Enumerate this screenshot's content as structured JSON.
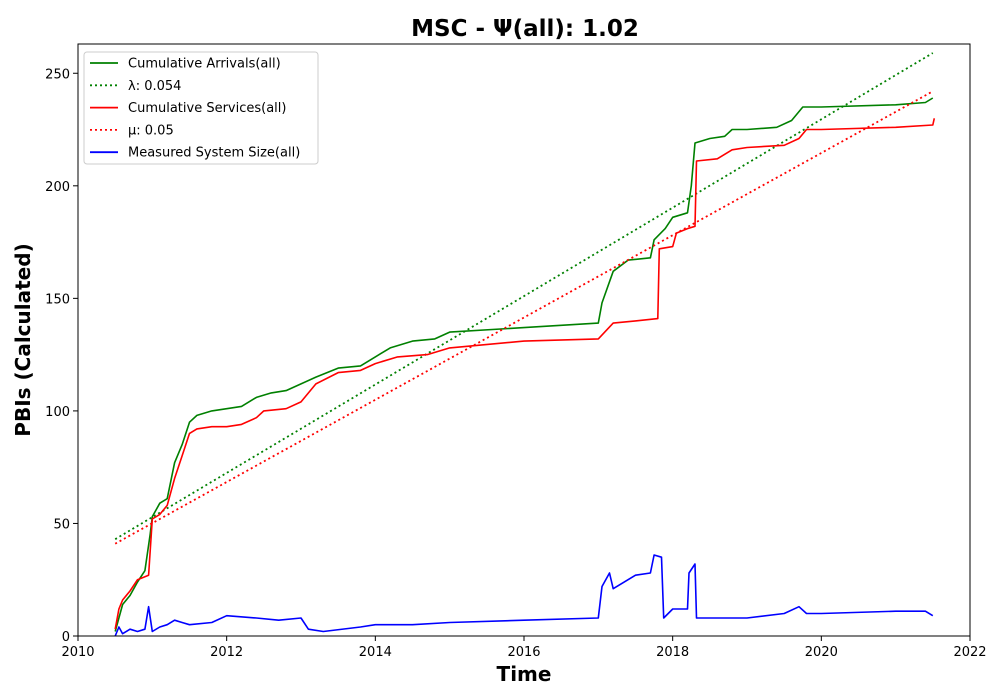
{
  "chart_data": {
    "type": "line",
    "title": "MSC -  Ψ(all): 1.02",
    "xlabel": "Time",
    "ylabel": "PBIs (Calculated)",
    "xlim": [
      2010.0,
      2022.0
    ],
    "ylim": [
      0,
      263
    ],
    "x_ticks": [
      2010,
      2012,
      2014,
      2016,
      2018,
      2020,
      2022
    ],
    "y_ticks": [
      0,
      50,
      100,
      150,
      200,
      250
    ],
    "grid": false,
    "legend_position": "upper-left",
    "series": [
      {
        "name": "Cumulative Arrivals(all)",
        "style": "solid",
        "color": "#008000",
        "points": [
          [
            2010.5,
            2
          ],
          [
            2010.55,
            8
          ],
          [
            2010.6,
            14
          ],
          [
            2010.7,
            18
          ],
          [
            2010.8,
            24
          ],
          [
            2010.9,
            29
          ],
          [
            2010.97,
            45
          ],
          [
            2011.0,
            53
          ],
          [
            2011.1,
            59
          ],
          [
            2011.2,
            61
          ],
          [
            2011.3,
            77
          ],
          [
            2011.4,
            85
          ],
          [
            2011.5,
            95
          ],
          [
            2011.6,
            98
          ],
          [
            2011.8,
            100
          ],
          [
            2012.0,
            101
          ],
          [
            2012.2,
            102
          ],
          [
            2012.4,
            106
          ],
          [
            2012.6,
            108
          ],
          [
            2012.8,
            109
          ],
          [
            2013.0,
            112
          ],
          [
            2013.2,
            115
          ],
          [
            2013.5,
            119
          ],
          [
            2013.8,
            120
          ],
          [
            2014.0,
            124
          ],
          [
            2014.2,
            128
          ],
          [
            2014.5,
            131
          ],
          [
            2014.8,
            132
          ],
          [
            2015.0,
            135
          ],
          [
            2016.0,
            137
          ],
          [
            2017.0,
            139
          ],
          [
            2017.05,
            148
          ],
          [
            2017.2,
            162
          ],
          [
            2017.4,
            167
          ],
          [
            2017.7,
            168
          ],
          [
            2017.75,
            176
          ],
          [
            2017.9,
            181
          ],
          [
            2018.0,
            186
          ],
          [
            2018.2,
            188
          ],
          [
            2018.25,
            200
          ],
          [
            2018.3,
            219
          ],
          [
            2018.5,
            221
          ],
          [
            2018.7,
            222
          ],
          [
            2018.8,
            225
          ],
          [
            2019.0,
            225
          ],
          [
            2019.4,
            226
          ],
          [
            2019.6,
            229
          ],
          [
            2019.75,
            235
          ],
          [
            2020.0,
            235
          ],
          [
            2021.0,
            236
          ],
          [
            2021.4,
            237
          ],
          [
            2021.5,
            239
          ]
        ]
      },
      {
        "name": "λ: 0.054",
        "style": "dotted",
        "color": "#008000",
        "points": [
          [
            2010.5,
            43
          ],
          [
            2021.5,
            259
          ]
        ]
      },
      {
        "name": "Cumulative Services(all)",
        "style": "solid",
        "color": "#ff0000",
        "points": [
          [
            2010.5,
            3
          ],
          [
            2010.55,
            12
          ],
          [
            2010.6,
            16
          ],
          [
            2010.7,
            20
          ],
          [
            2010.8,
            25
          ],
          [
            2010.95,
            27
          ],
          [
            2011.0,
            52
          ],
          [
            2011.1,
            54
          ],
          [
            2011.2,
            58
          ],
          [
            2011.3,
            70
          ],
          [
            2011.4,
            80
          ],
          [
            2011.5,
            90
          ],
          [
            2011.6,
            92
          ],
          [
            2011.8,
            93
          ],
          [
            2012.0,
            93
          ],
          [
            2012.2,
            94
          ],
          [
            2012.4,
            97
          ],
          [
            2012.5,
            100
          ],
          [
            2012.8,
            101
          ],
          [
            2013.0,
            104
          ],
          [
            2013.2,
            112
          ],
          [
            2013.5,
            117
          ],
          [
            2013.8,
            118
          ],
          [
            2014.0,
            121
          ],
          [
            2014.3,
            124
          ],
          [
            2014.7,
            125
          ],
          [
            2015.0,
            128
          ],
          [
            2016.0,
            131
          ],
          [
            2017.0,
            132
          ],
          [
            2017.2,
            139
          ],
          [
            2017.5,
            140
          ],
          [
            2017.8,
            141
          ],
          [
            2017.82,
            172
          ],
          [
            2018.0,
            173
          ],
          [
            2018.05,
            179
          ],
          [
            2018.2,
            181
          ],
          [
            2018.3,
            182
          ],
          [
            2018.32,
            211
          ],
          [
            2018.6,
            212
          ],
          [
            2018.8,
            216
          ],
          [
            2019.0,
            217
          ],
          [
            2019.5,
            218
          ],
          [
            2019.7,
            221
          ],
          [
            2019.8,
            225
          ],
          [
            2020.0,
            225
          ],
          [
            2021.0,
            226
          ],
          [
            2021.5,
            227
          ],
          [
            2021.52,
            230
          ]
        ]
      },
      {
        "name": "μ: 0.05",
        "style": "dotted",
        "color": "#ff0000",
        "points": [
          [
            2010.5,
            41
          ],
          [
            2021.5,
            242
          ]
        ]
      },
      {
        "name": "Measured System Size(all)",
        "style": "solid",
        "color": "#0000ff",
        "points": [
          [
            2010.5,
            0
          ],
          [
            2010.55,
            4
          ],
          [
            2010.6,
            1
          ],
          [
            2010.7,
            3
          ],
          [
            2010.8,
            2
          ],
          [
            2010.9,
            3
          ],
          [
            2010.95,
            13
          ],
          [
            2011.0,
            2
          ],
          [
            2011.1,
            4
          ],
          [
            2011.2,
            5
          ],
          [
            2011.3,
            7
          ],
          [
            2011.4,
            6
          ],
          [
            2011.5,
            5
          ],
          [
            2011.8,
            6
          ],
          [
            2012.0,
            9
          ],
          [
            2012.4,
            8
          ],
          [
            2012.7,
            7
          ],
          [
            2013.0,
            8
          ],
          [
            2013.1,
            3
          ],
          [
            2013.3,
            2
          ],
          [
            2013.8,
            4
          ],
          [
            2014.0,
            5
          ],
          [
            2014.5,
            5
          ],
          [
            2015.0,
            6
          ],
          [
            2016.0,
            7
          ],
          [
            2017.0,
            8
          ],
          [
            2017.05,
            22
          ],
          [
            2017.15,
            28
          ],
          [
            2017.2,
            21
          ],
          [
            2017.5,
            27
          ],
          [
            2017.7,
            28
          ],
          [
            2017.75,
            36
          ],
          [
            2017.85,
            35
          ],
          [
            2017.88,
            8
          ],
          [
            2018.0,
            12
          ],
          [
            2018.2,
            12
          ],
          [
            2018.22,
            28
          ],
          [
            2018.3,
            32
          ],
          [
            2018.32,
            8
          ],
          [
            2018.6,
            8
          ],
          [
            2019.0,
            8
          ],
          [
            2019.5,
            10
          ],
          [
            2019.7,
            13
          ],
          [
            2019.8,
            10
          ],
          [
            2020.0,
            10
          ],
          [
            2021.0,
            11
          ],
          [
            2021.4,
            11
          ],
          [
            2021.5,
            9
          ]
        ]
      }
    ]
  }
}
